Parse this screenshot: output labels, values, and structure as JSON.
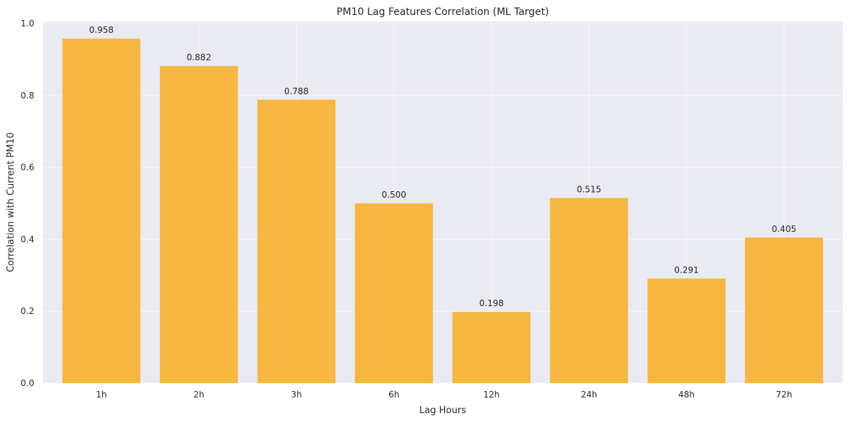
{
  "chart_data": {
    "type": "bar",
    "title": "PM10 Lag Features Correlation (ML Target)",
    "xlabel": "Lag Hours",
    "ylabel": "Correlation with Current PM10",
    "categories": [
      "1h",
      "2h",
      "3h",
      "6h",
      "12h",
      "24h",
      "48h",
      "72h"
    ],
    "values": [
      0.958,
      0.882,
      0.788,
      0.5,
      0.198,
      0.515,
      0.291,
      0.405
    ],
    "value_labels": [
      "0.958",
      "0.882",
      "0.788",
      "0.500",
      "0.198",
      "0.515",
      "0.291",
      "0.405"
    ],
    "ylim": [
      0.0,
      1.0
    ],
    "yticks": [
      0.0,
      0.2,
      0.4,
      0.6,
      0.8,
      1.0
    ],
    "ytick_labels": [
      "0.0",
      "0.2",
      "0.4",
      "0.6",
      "0.8",
      "1.0"
    ],
    "grid": true,
    "bar_color": "#f5b642",
    "background_color": "#eaeaf2",
    "grid_color": "#ffffff"
  }
}
